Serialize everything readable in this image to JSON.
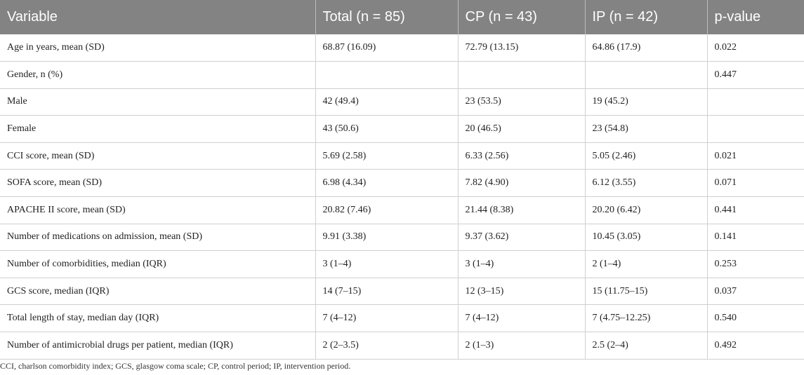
{
  "table": {
    "headers": [
      "Variable",
      "Total (n = 85)",
      "CP (n = 43)",
      "IP (n = 42)",
      "p-value"
    ],
    "rows": [
      [
        "Age in years, mean (SD)",
        "68.87 (16.09)",
        "72.79 (13.15)",
        "64.86 (17.9)",
        "0.022"
      ],
      [
        "Gender, n (%)",
        "",
        "",
        "",
        "0.447"
      ],
      [
        "Male",
        "42 (49.4)",
        "23 (53.5)",
        "19 (45.2)",
        ""
      ],
      [
        "Female",
        "43 (50.6)",
        "20 (46.5)",
        "23 (54.8)",
        ""
      ],
      [
        "CCI score, mean (SD)",
        "5.69 (2.58)",
        "6.33 (2.56)",
        "5.05 (2.46)",
        "0.021"
      ],
      [
        "SOFA score, mean (SD)",
        "6.98 (4.34)",
        "7.82 (4.90)",
        "6.12 (3.55)",
        "0.071"
      ],
      [
        "APACHE II score, mean (SD)",
        "20.82 (7.46)",
        "21.44 (8.38)",
        "20.20 (6.42)",
        "0.441"
      ],
      [
        "Number of medications on admission, mean (SD)",
        "9.91 (3.38)",
        "9.37 (3.62)",
        "10.45 (3.05)",
        "0.141"
      ],
      [
        "Number of comorbidities, median (IQR)",
        "3 (1–4)",
        "3 (1–4)",
        "2 (1–4)",
        "0.253"
      ],
      [
        "GCS score, median (IQR)",
        "14 (7–15)",
        "12 (3–15)",
        "15 (11.75–15)",
        "0.037"
      ],
      [
        "Total length of stay, median day (IQR)",
        "7 (4–12)",
        "7 (4–12)",
        "7 (4.75–12.25)",
        "0.540"
      ],
      [
        "Number of antimicrobial drugs per patient, median (IQR)",
        "2 (2–3.5)",
        "2 (1–3)",
        "2.5 (2–4)",
        "0.492"
      ]
    ]
  },
  "footnote": "CCI, charlson comorbidity index; GCS, glasgow coma scale; CP, control period; IP, intervention period."
}
